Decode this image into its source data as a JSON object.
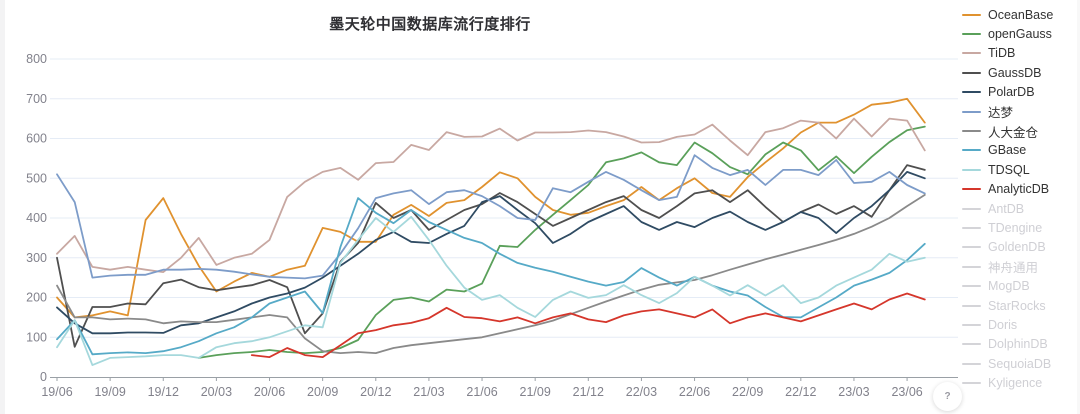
{
  "title": "墨天轮中国数据库流行度排行",
  "help_button": {
    "icon": "?"
  },
  "axis": {
    "y_labels": [
      "0",
      "100",
      "200",
      "300",
      "400",
      "500",
      "600",
      "700",
      "800"
    ],
    "x_labels": [
      "19/06",
      "19/09",
      "19/12",
      "20/03",
      "20/06",
      "20/09",
      "20/12",
      "21/03",
      "21/06",
      "21/09",
      "21/12",
      "22/03",
      "22/06",
      "22/09",
      "22/12",
      "23/03",
      "23/06"
    ]
  },
  "colors": {
    "grid": "#e5ecf6",
    "axis_line": "#9aa0a6",
    "tick_text": "#82828c",
    "legend_active_text": "#333333",
    "legend_disabled_text": "#cfcfd4"
  },
  "chart_data": {
    "type": "line",
    "title": "墨天轮中国数据库流行度排行",
    "xlabel": "",
    "ylabel": "",
    "ylim": [
      0,
      800
    ],
    "y_ticks": [
      0,
      100,
      200,
      300,
      400,
      500,
      600,
      700,
      800
    ],
    "grid": true,
    "legend_position": "right",
    "x": [
      "19/06",
      "19/07",
      "19/08",
      "19/09",
      "19/10",
      "19/11",
      "19/12",
      "20/01",
      "20/02",
      "20/03",
      "20/04",
      "20/05",
      "20/06",
      "20/07",
      "20/08",
      "20/09",
      "20/10",
      "20/11",
      "20/12",
      "21/01",
      "21/02",
      "21/03",
      "21/04",
      "21/05",
      "21/06",
      "21/07",
      "21/08",
      "21/09",
      "21/10",
      "21/11",
      "21/12",
      "22/01",
      "22/02",
      "22/03",
      "22/04",
      "22/05",
      "22/06",
      "22/07",
      "22/08",
      "22/09",
      "22/10",
      "22/11",
      "22/12",
      "23/01",
      "23/02",
      "23/03",
      "23/04",
      "23/05",
      "23/06",
      "23/07"
    ],
    "x_tick_labels": [
      "19/06",
      "19/09",
      "19/12",
      "20/03",
      "20/06",
      "20/09",
      "20/12",
      "21/03",
      "21/06",
      "21/09",
      "21/12",
      "22/03",
      "22/06",
      "22/09",
      "22/12",
      "23/03",
      "23/06"
    ],
    "series": [
      {
        "name": "OceanBase",
        "color": "#e0922f",
        "enabled": true,
        "values": [
          200,
          150,
          155,
          165,
          155,
          395,
          450,
          360,
          280,
          215,
          240,
          262,
          252,
          270,
          280,
          375,
          365,
          340,
          340,
          408,
          433,
          405,
          438,
          445,
          478,
          515,
          500,
          453,
          420,
          408,
          413,
          430,
          445,
          478,
          445,
          475,
          500,
          463,
          453,
          503,
          540,
          575,
          615,
          640,
          640,
          660,
          685,
          690,
          700,
          640
        ]
      },
      {
        "name": "openGauss",
        "color": "#5aa05a",
        "enabled": true,
        "values": [
          null,
          null,
          null,
          null,
          null,
          null,
          null,
          null,
          48,
          55,
          60,
          63,
          68,
          63,
          60,
          63,
          73,
          93,
          156,
          194,
          200,
          190,
          220,
          215,
          235,
          330,
          327,
          370,
          408,
          445,
          483,
          540,
          550,
          565,
          540,
          533,
          590,
          563,
          528,
          510,
          560,
          590,
          570,
          520,
          555,
          513,
          554,
          591,
          621,
          630
        ]
      },
      {
        "name": "TiDB",
        "color": "#c8a8a2",
        "enabled": true,
        "values": [
          310,
          355,
          277,
          270,
          277,
          270,
          264,
          300,
          350,
          282,
          300,
          310,
          345,
          453,
          491,
          516,
          526,
          496,
          538,
          541,
          584,
          571,
          616,
          604,
          605,
          625,
          595,
          615,
          615,
          616,
          620,
          616,
          605,
          590,
          591,
          604,
          610,
          635,
          595,
          558,
          616,
          626,
          645,
          640,
          600,
          650,
          605,
          650,
          645,
          570
        ]
      },
      {
        "name": "GaussDB",
        "color": "#4f4f4f",
        "enabled": true,
        "values": [
          300,
          76,
          176,
          176,
          185,
          183,
          236,
          245,
          226,
          218,
          225,
          231,
          244,
          226,
          110,
          160,
          290,
          337,
          438,
          400,
          420,
          370,
          395,
          420,
          435,
          463,
          440,
          410,
          380,
          400,
          420,
          440,
          455,
          420,
          400,
          430,
          462,
          470,
          440,
          470,
          428,
          390,
          415,
          434,
          410,
          430,
          403,
          470,
          533,
          521
        ]
      },
      {
        "name": "PolarDB",
        "color": "#2f4b63",
        "enabled": true,
        "values": [
          175,
          135,
          110,
          110,
          112,
          112,
          111,
          130,
          135,
          150,
          165,
          185,
          200,
          210,
          225,
          250,
          280,
          310,
          345,
          365,
          340,
          337,
          360,
          380,
          440,
          455,
          420,
          387,
          337,
          360,
          390,
          410,
          430,
          390,
          370,
          390,
          377,
          400,
          416,
          390,
          370,
          390,
          415,
          400,
          362,
          400,
          430,
          470,
          516,
          500
        ]
      },
      {
        "name": "达梦",
        "color": "#7d9cc9",
        "enabled": true,
        "values": [
          510,
          440,
          250,
          255,
          257,
          257,
          270,
          270,
          272,
          270,
          265,
          258,
          252,
          250,
          248,
          255,
          310,
          374,
          450,
          462,
          470,
          435,
          465,
          470,
          455,
          430,
          400,
          395,
          475,
          465,
          491,
          516,
          496,
          470,
          445,
          453,
          558,
          526,
          508,
          521,
          483,
          521,
          521,
          508,
          546,
          488,
          491,
          516,
          483,
          462
        ]
      },
      {
        "name": "人大金仓",
        "color": "#8a8a8a",
        "enabled": true,
        "values": [
          230,
          150,
          150,
          145,
          147,
          145,
          135,
          140,
          138,
          138,
          144,
          150,
          156,
          150,
          97,
          65,
          60,
          63,
          60,
          73,
          80,
          85,
          90,
          95,
          100,
          110,
          120,
          130,
          142,
          158,
          174,
          190,
          205,
          220,
          232,
          238,
          244,
          256,
          270,
          283,
          296,
          308,
          320,
          332,
          345,
          360,
          378,
          400,
          430,
          458
        ]
      },
      {
        "name": "GBase",
        "color": "#56aac7",
        "enabled": true,
        "values": [
          95,
          143,
          57,
          60,
          62,
          60,
          65,
          75,
          90,
          110,
          125,
          150,
          185,
          200,
          215,
          161,
          327,
          450,
          413,
          387,
          420,
          390,
          370,
          350,
          337,
          310,
          287,
          275,
          265,
          252,
          240,
          230,
          239,
          274,
          250,
          230,
          252,
          230,
          215,
          205,
          176,
          151,
          150,
          175,
          200,
          230,
          245,
          262,
          294,
          335
        ]
      },
      {
        "name": "TDSQL",
        "color": "#a5d8dc",
        "enabled": true,
        "values": [
          75,
          143,
          30,
          48,
          50,
          52,
          55,
          55,
          48,
          75,
          85,
          90,
          100,
          115,
          130,
          125,
          287,
          345,
          400,
          365,
          403,
          345,
          280,
          225,
          194,
          206,
          174,
          151,
          194,
          215,
          199,
          206,
          231,
          206,
          186,
          211,
          252,
          230,
          205,
          231,
          205,
          231,
          186,
          200,
          230,
          250,
          270,
          310,
          290,
          300
        ]
      },
      {
        "name": "AnalyticDB",
        "color": "#d5362b",
        "enabled": true,
        "values": [
          null,
          null,
          null,
          null,
          null,
          null,
          null,
          null,
          null,
          null,
          null,
          55,
          50,
          73,
          55,
          50,
          80,
          110,
          118,
          130,
          136,
          148,
          174,
          151,
          148,
          140,
          150,
          135,
          150,
          160,
          145,
          138,
          155,
          165,
          170,
          160,
          150,
          170,
          135,
          150,
          160,
          150,
          140,
          155,
          170,
          185,
          170,
          195,
          210,
          195
        ]
      },
      {
        "name": "AntDB",
        "color": "#d4d4d8",
        "enabled": false,
        "values": []
      },
      {
        "name": "TDengine",
        "color": "#d4d4d8",
        "enabled": false,
        "values": []
      },
      {
        "name": "GoldenDB",
        "color": "#d4d4d8",
        "enabled": false,
        "values": []
      },
      {
        "name": "神舟通用",
        "color": "#d4d4d8",
        "enabled": false,
        "values": []
      },
      {
        "name": "MogDB",
        "color": "#d4d4d8",
        "enabled": false,
        "values": []
      },
      {
        "name": "StarRocks",
        "color": "#d4d4d8",
        "enabled": false,
        "values": []
      },
      {
        "name": "Doris",
        "color": "#d4d4d8",
        "enabled": false,
        "values": []
      },
      {
        "name": "DolphinDB",
        "color": "#d4d4d8",
        "enabled": false,
        "values": []
      },
      {
        "name": "SequoiaDB",
        "color": "#d4d4d8",
        "enabled": false,
        "values": []
      },
      {
        "name": "Kyligence",
        "color": "#d4d4d8",
        "enabled": false,
        "values": []
      }
    ]
  }
}
